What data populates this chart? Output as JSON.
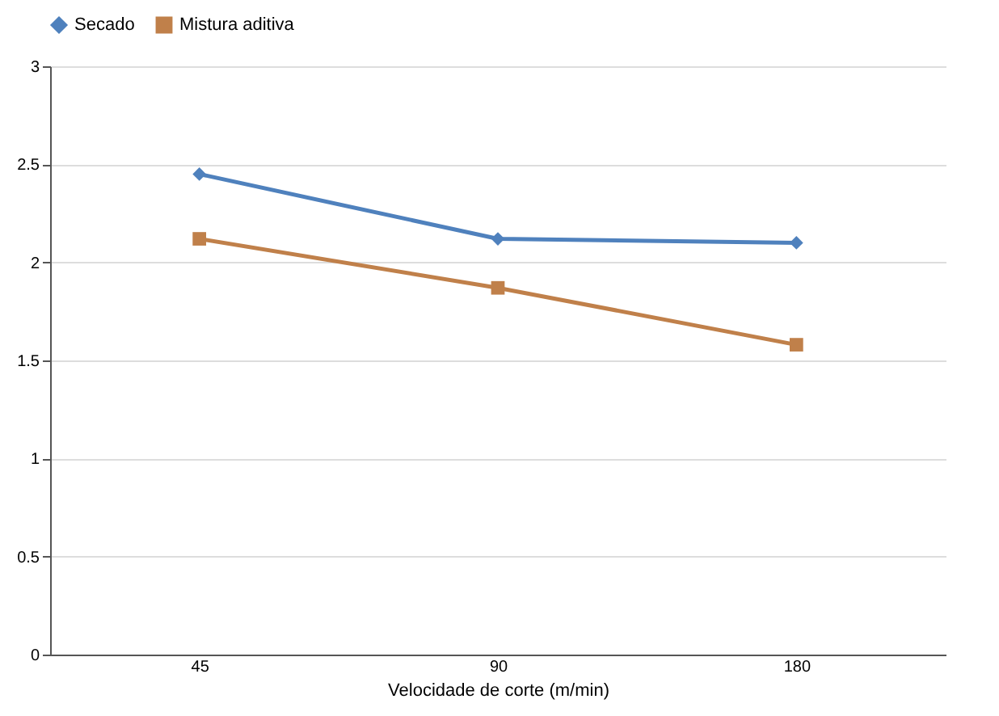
{
  "chart_data": {
    "type": "line",
    "xlabel": "Velocidade de corte (m/min)",
    "categories": [
      "45",
      "90",
      "180"
    ],
    "series": [
      {
        "name": "Secado",
        "color": "#4f81bd",
        "marker": "diamond",
        "values": [
          2.45,
          2.12,
          2.1
        ]
      },
      {
        "name": "Mistura aditiva",
        "color": "#c0804a",
        "marker": "square",
        "values": [
          2.12,
          1.87,
          1.58
        ]
      }
    ],
    "ylim": [
      0,
      3
    ],
    "yticks": [
      0,
      0.5,
      1,
      1.5,
      2,
      2.5,
      3
    ],
    "grid": "y",
    "legend": "top"
  }
}
